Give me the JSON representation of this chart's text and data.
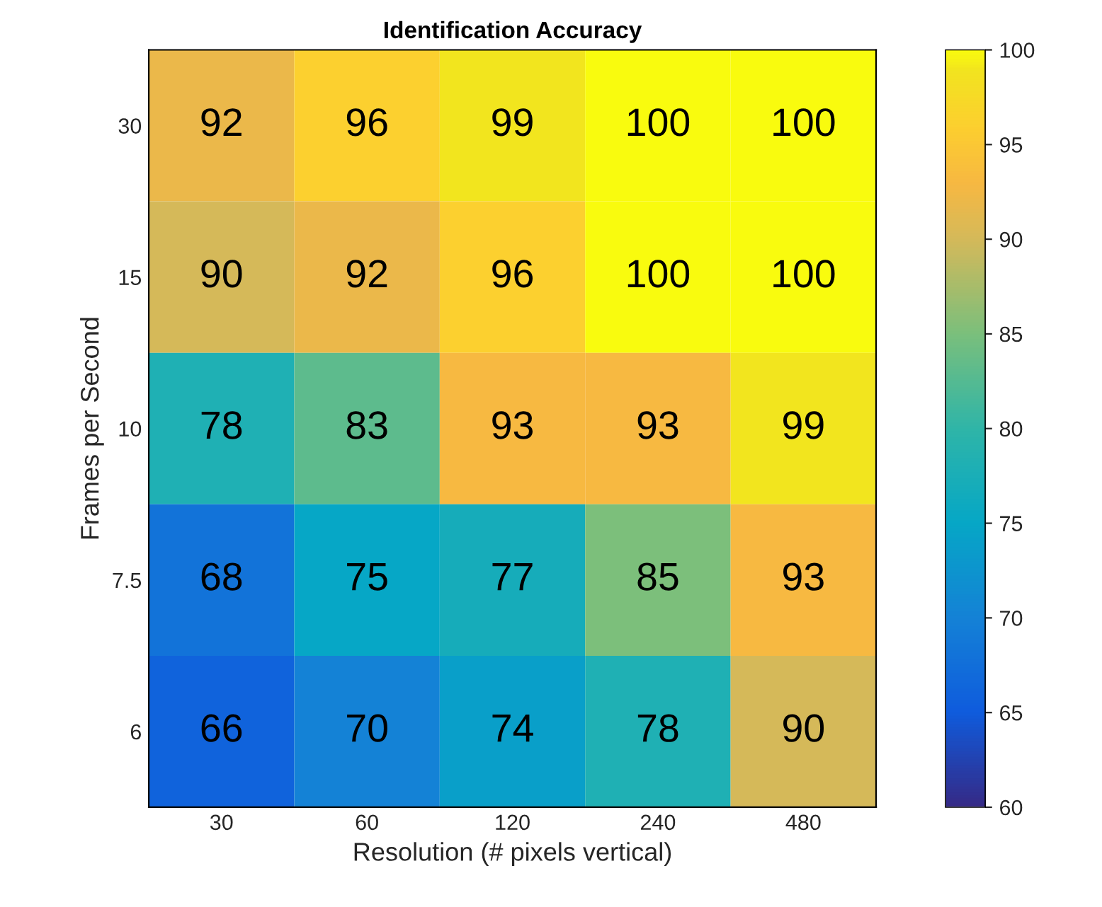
{
  "chart_data": {
    "type": "heatmap",
    "title": "Identification Accuracy",
    "xlabel": "Resolution (# pixels vertical)",
    "ylabel": "Frames per Second",
    "categories": [
      "30",
      "60",
      "120",
      "240",
      "480"
    ],
    "y_categories": [
      "30",
      "15",
      "10",
      "7.5",
      "6"
    ],
    "cells": [
      [
        92,
        96,
        99,
        100,
        100
      ],
      [
        90,
        92,
        96,
        100,
        100
      ],
      [
        78,
        83,
        93,
        93,
        99
      ],
      [
        68,
        75,
        77,
        85,
        93
      ],
      [
        66,
        70,
        74,
        78,
        90
      ]
    ],
    "data_labels": true,
    "clim": [
      60,
      100
    ],
    "cticks": [
      60,
      65,
      70,
      75,
      80,
      85,
      90,
      95,
      100
    ]
  }
}
